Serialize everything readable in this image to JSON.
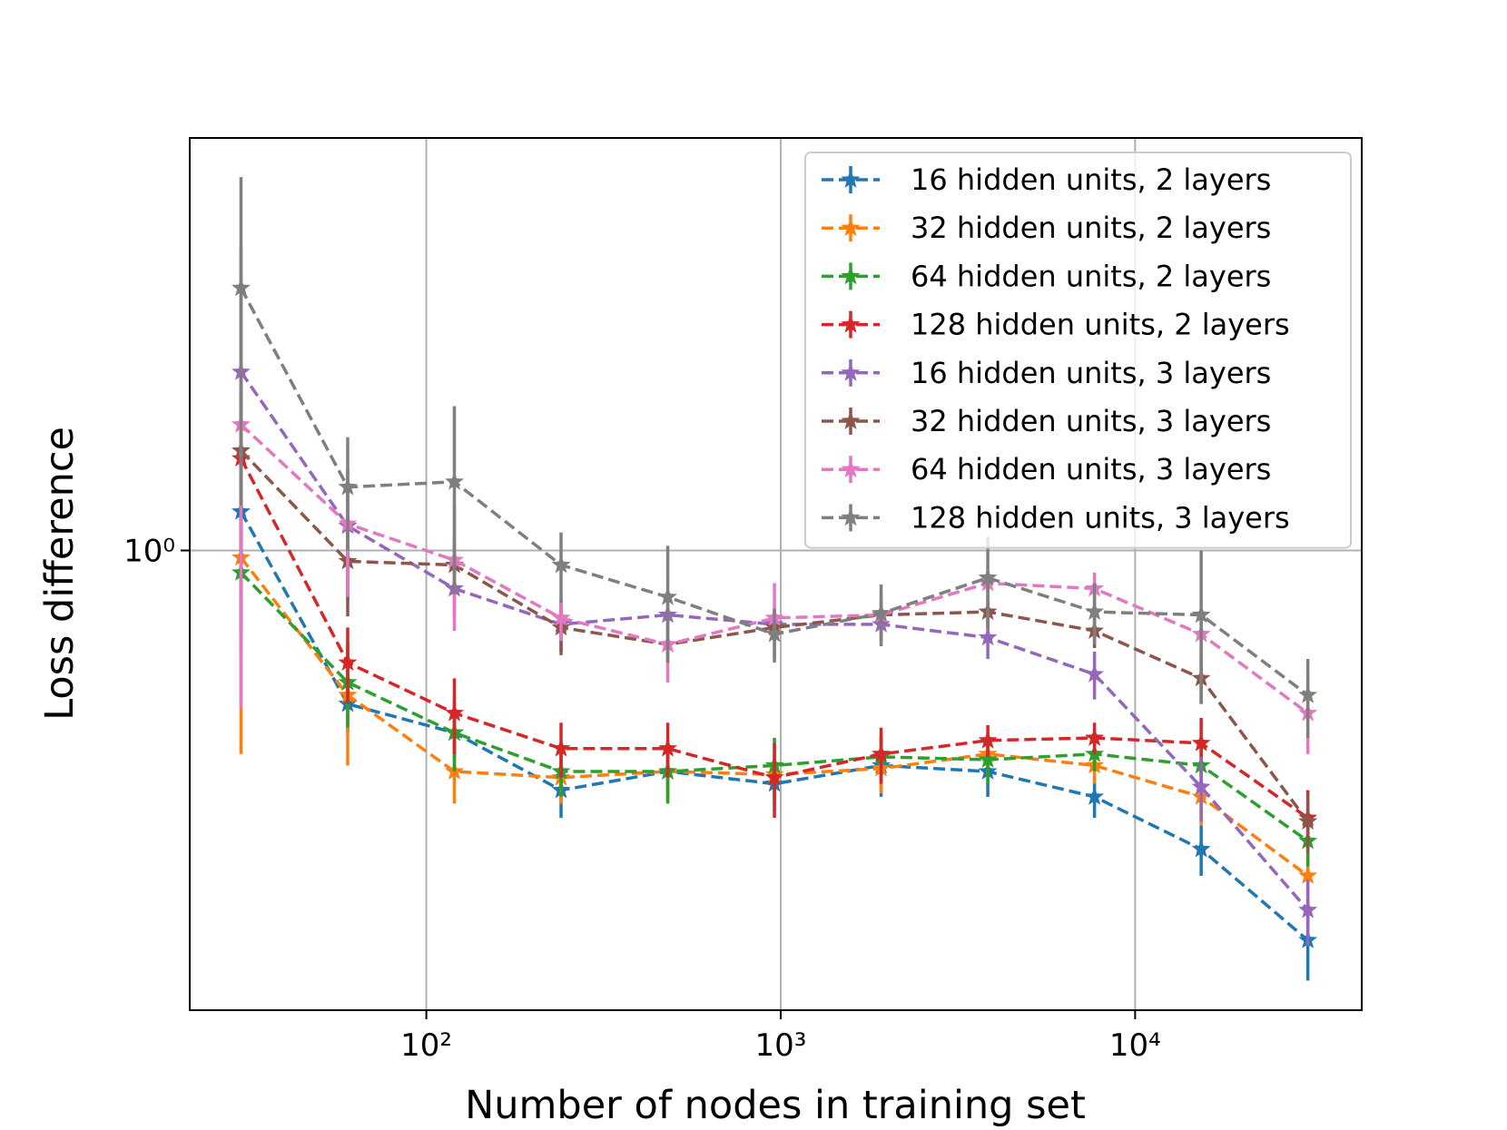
{
  "chart_data": {
    "type": "errorbar_line",
    "x_label": "Number of nodes in training set",
    "y_label": "Loss difference",
    "x": [
      30,
      60,
      120,
      240,
      480,
      960,
      1920,
      3840,
      7680,
      15360,
      30720
    ],
    "xlog": true,
    "ylog": true,
    "xlim": [
      21.5,
      43600
    ],
    "ylim": [
      0.141,
      5.8
    ],
    "xticks": [
      {
        "value": 100,
        "label": "10²"
      },
      {
        "value": 1000,
        "label": "10³"
      },
      {
        "value": 10000,
        "label": "10⁴"
      }
    ],
    "yticks": [
      {
        "value": 1,
        "label": "10⁰"
      }
    ],
    "grid": true,
    "legend_loc": "upper right",
    "series": [
      {
        "name": "16 hidden units, 2 layers",
        "color": "#1f77b4",
        "values": [
          1.18,
          0.52,
          0.46,
          0.36,
          0.39,
          0.37,
          0.4,
          0.39,
          0.35,
          0.28,
          0.19
        ],
        "errors": [
          0.3,
          0.06,
          0.05,
          0.04,
          0.04,
          0.04,
          0.05,
          0.04,
          0.03,
          0.03,
          0.03
        ]
      },
      {
        "name": "32 hidden units, 2 layers",
        "color": "#ff7f0e",
        "values": [
          0.97,
          0.54,
          0.39,
          0.38,
          0.39,
          0.385,
          0.395,
          0.42,
          0.4,
          0.35,
          0.25
        ],
        "errors": [
          0.55,
          0.14,
          0.05,
          0.04,
          0.05,
          0.04,
          0.04,
          0.04,
          0.03,
          0.04,
          0.03
        ]
      },
      {
        "name": "64 hidden units, 2 layers",
        "color": "#2ca02c",
        "values": [
          0.91,
          0.57,
          0.46,
          0.39,
          0.39,
          0.4,
          0.415,
          0.41,
          0.42,
          0.4,
          0.29
        ],
        "errors": [
          0.2,
          0.1,
          0.07,
          0.04,
          0.05,
          0.05,
          0.04,
          0.04,
          0.03,
          0.03,
          0.03
        ]
      },
      {
        "name": "128 hidden units, 2 layers",
        "color": "#d62728",
        "values": [
          1.48,
          0.62,
          0.5,
          0.43,
          0.43,
          0.38,
          0.42,
          0.445,
          0.45,
          0.44,
          0.32
        ],
        "errors": [
          0.5,
          0.1,
          0.08,
          0.05,
          0.05,
          0.06,
          0.05,
          0.03,
          0.03,
          0.05,
          0.04
        ]
      },
      {
        "name": "16 hidden units, 3 layers",
        "color": "#9467bd",
        "values": [
          2.14,
          1.11,
          0.85,
          0.73,
          0.76,
          0.73,
          0.73,
          0.69,
          0.59,
          0.365,
          0.216
        ],
        "errors": [
          1.5,
          0.3,
          0.1,
          0.08,
          0.05,
          0.05,
          0.05,
          0.06,
          0.06,
          0.05,
          0.03
        ]
      },
      {
        "name": "32 hidden units, 3 layers",
        "color": "#8c564b",
        "values": [
          1.53,
          0.955,
          0.94,
          0.72,
          0.67,
          0.72,
          0.76,
          0.77,
          0.71,
          0.58,
          0.315
        ],
        "errors": [
          0.7,
          0.2,
          0.12,
          0.08,
          0.05,
          0.04,
          0.04,
          0.05,
          0.05,
          0.06,
          0.04
        ]
      },
      {
        "name": "64 hidden units, 3 layers",
        "color": "#e377c2",
        "values": [
          1.71,
          1.12,
          0.96,
          0.75,
          0.67,
          0.75,
          0.76,
          0.87,
          0.85,
          0.7,
          0.5
        ],
        "errors": [
          1.2,
          0.3,
          0.25,
          0.07,
          0.1,
          0.12,
          0.07,
          0.05,
          0.06,
          0.08,
          0.08
        ]
      },
      {
        "name": "128 hidden units, 3 layers",
        "color": "#7f7f7f",
        "values": [
          3.06,
          1.31,
          1.34,
          0.94,
          0.82,
          0.7,
          0.765,
          0.89,
          0.77,
          0.76,
          0.54
        ],
        "errors": [
          1.85,
          0.31,
          0.51,
          0.14,
          0.2,
          0.08,
          0.1,
          0.17,
          0.1,
          0.24,
          0.09
        ]
      }
    ]
  }
}
